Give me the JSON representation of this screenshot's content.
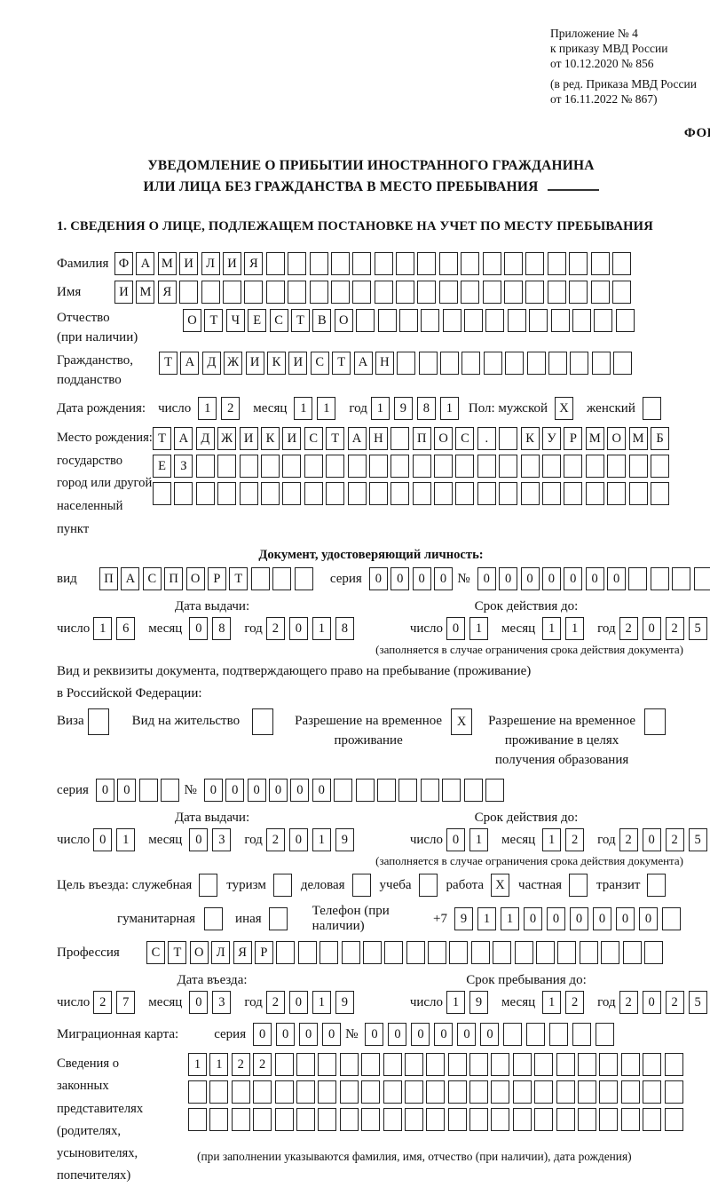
{
  "meta": {
    "appendix_lines": [
      "Приложение № 4",
      "к приказу МВД России",
      "от 10.12.2020 № 856"
    ],
    "revision_lines": [
      "(в ред. Приказа МВД России",
      "от 16.11.2022 № 867)"
    ],
    "form_label": "ФОРМА"
  },
  "title": {
    "line1": "УВЕДОМЛЕНИЕ О ПРИБЫТИИ ИНОСТРАННОГО ГРАЖДАНИНА",
    "line2": "ИЛИ ЛИЦА БЕЗ ГРАЖДАНСТВА В МЕСТО ПРЕБЫВАНИЯ"
  },
  "section1_heading": "1. СВЕДЕНИЯ О ЛИЦЕ, ПОДЛЕЖАЩЕМ ПОСТАНОВКЕ НА УЧЕТ ПО МЕСТУ ПРЕБЫВАНИЯ",
  "date_labels": {
    "day": "число",
    "month": "месяц",
    "year": "год"
  },
  "fields": {
    "surname": {
      "label": "Фамилия",
      "value": "ФАМИЛИЯ",
      "boxes": 24
    },
    "name": {
      "label": "Имя",
      "value": "ИМЯ",
      "boxes": 24
    },
    "patronymic": {
      "label": "Отчество",
      "label2": "(при наличии)",
      "value": "ОТЧЕСТВО",
      "boxes": 21
    },
    "citizenship": {
      "label": "Гражданство,",
      "label2": "подданство",
      "value": "ТАДЖИКИСТАН",
      "boxes": 22
    },
    "birth_date": {
      "label": "Дата рождения:",
      "day": {
        "value": "12",
        "boxes": 2
      },
      "month": {
        "value": "11",
        "boxes": 2
      },
      "year": {
        "value": "1981",
        "boxes": 4
      },
      "sex_label": "Пол: мужской",
      "male_mark": "X",
      "female_label": "женский",
      "female_mark": ""
    },
    "birth_place": {
      "label_lines": [
        "Место рождения:",
        "государство",
        "город или другой",
        "населенный пункт"
      ],
      "row1": {
        "value": "ТАДЖИКИСТАН ПОС. КУРМОМБ",
        "boxes": 24
      },
      "row2": {
        "value": "ЕЗ",
        "boxes": 24
      },
      "row3": {
        "value": "",
        "boxes": 24
      }
    },
    "identity_doc": {
      "heading": "Документ, удостоверяющий личность:",
      "kind_label": "вид",
      "kind": {
        "value": "ПАСПОРТ",
        "boxes": 10
      },
      "series_label": "серия",
      "series": {
        "value": "0000",
        "boxes": 4
      },
      "number_label": "№",
      "number": {
        "value": "0000000",
        "boxes": 11
      },
      "issue_header": "Дата выдачи:",
      "issue_day": {
        "value": "16",
        "boxes": 2
      },
      "issue_month": {
        "value": "08",
        "boxes": 2
      },
      "issue_year": {
        "value": "2018",
        "boxes": 4
      },
      "valid_header": "Срок действия до:",
      "valid_day": {
        "value": "01",
        "boxes": 2
      },
      "valid_month": {
        "value": "11",
        "boxes": 2
      },
      "valid_year": {
        "value": "2025",
        "boxes": 4
      },
      "validity_note": "(заполняется в случае ограничения срока действия документа)"
    },
    "residence_doc": {
      "line1": "Вид и реквизиты документа, подтверждающего право на пребывание (проживание)",
      "line2": "в Российской Федерации:",
      "opt_visa_label": "Виза",
      "opt_visa_mark": "",
      "opt_residence_label": "Вид на жительство",
      "opt_residence_mark": "",
      "opt_temp_l1": "Разрешение на временное",
      "opt_temp_l2": "проживание",
      "opt_temp_mark": "X",
      "opt_edu_l1": "Разрешение на временное",
      "opt_edu_l2": "проживание в целях",
      "opt_edu_l3": "получения образования",
      "opt_edu_mark": "",
      "series_label": "серия",
      "series": {
        "value": "00",
        "boxes": 4
      },
      "number_label": "№",
      "number": {
        "value": "000000",
        "boxes": 14
      },
      "issue_header": "Дата выдачи:",
      "issue_day": {
        "value": "01",
        "boxes": 2
      },
      "issue_month": {
        "value": "03",
        "boxes": 2
      },
      "issue_year": {
        "value": "2019",
        "boxes": 4
      },
      "valid_header": "Срок действия до:",
      "valid_day": {
        "value": "01",
        "boxes": 2
      },
      "valid_month": {
        "value": "12",
        "boxes": 2
      },
      "valid_year": {
        "value": "2025",
        "boxes": 4
      },
      "validity_note": "(заполняется в случае ограничения срока действия документа)"
    },
    "purpose": {
      "label": "Цель въезда: служебная",
      "opt_official_mark": "",
      "opt_tourism_label": "туризм",
      "opt_tourism_mark": "",
      "opt_business_label": "деловая",
      "opt_business_mark": "",
      "opt_study_label": "учеба",
      "opt_study_mark": "",
      "opt_work_label": "работа",
      "opt_work_mark": "X",
      "opt_private_label": "частная",
      "opt_private_mark": "",
      "opt_transit_label": "транзит",
      "opt_transit_mark": "",
      "opt_humanitarian_label": "гуманитарная",
      "opt_humanitarian_mark": "",
      "opt_other_label": "иная",
      "opt_other_mark": ""
    },
    "phone": {
      "label": "Телефон (при наличии)",
      "prefix": "+7",
      "number": {
        "value": "911000000",
        "boxes": 10
      }
    },
    "profession": {
      "label": "Профессия",
      "value": "СТОЛЯР",
      "boxes": 24
    },
    "entry": {
      "entry_header": "Дата въезда:",
      "entry_day": {
        "value": "27",
        "boxes": 2
      },
      "entry_month": {
        "value": "03",
        "boxes": 2
      },
      "entry_year": {
        "value": "2019",
        "boxes": 4
      },
      "stay_header": "Срок пребывания до:",
      "stay_day": {
        "value": "19",
        "boxes": 2
      },
      "stay_month": {
        "value": "12",
        "boxes": 2
      },
      "stay_year": {
        "value": "2025",
        "boxes": 4
      }
    },
    "migration_card": {
      "label": "Миграционная карта:",
      "series_label": "серия",
      "series": {
        "value": "0000",
        "boxes": 4
      },
      "number_label": "№",
      "number": {
        "value": "000000",
        "boxes": 11
      }
    },
    "legal_reps": {
      "label_lines": [
        "Сведения о",
        "законных",
        "представителях",
        "(родителях,",
        "усыновителях,",
        "попечителях)"
      ],
      "row1": {
        "value": "1122",
        "boxes": 23
      },
      "row2": {
        "value": "",
        "boxes": 23
      },
      "row3": {
        "value": "",
        "boxes": 23
      },
      "note": "(при заполнении указываются фамилия, имя, отчество (при наличии), дата рождения)"
    }
  }
}
